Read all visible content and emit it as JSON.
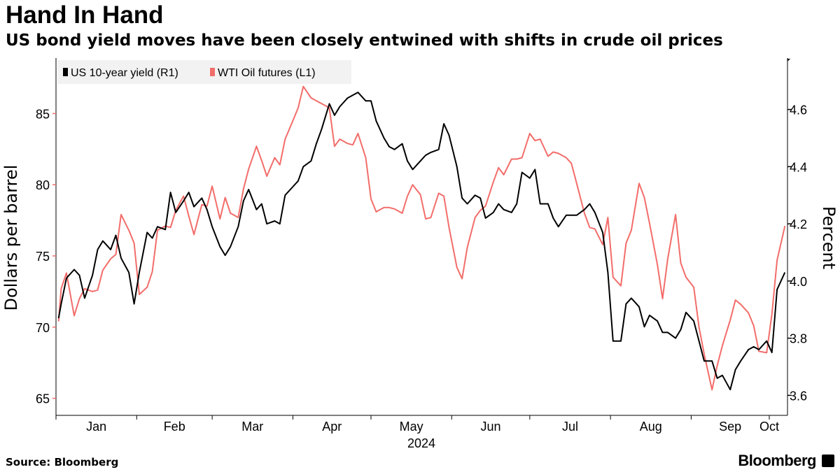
{
  "title": "Hand In Hand",
  "subtitle": "US bond yield moves have been closely entwined with shifts in crude oil prices",
  "source": "Source: Bloomberg",
  "brand": "Bloomberg",
  "brand_icon": "bloomberg-terminal-icon",
  "colors": {
    "yield": "#000000",
    "oil": "#f26d6a",
    "legend_bg": "#f2f2f2",
    "axis": "#000000",
    "left_ticks": "#f26d6a"
  },
  "chart_data": {
    "type": "line",
    "xlabel": "2024",
    "month_labels": [
      "Jan",
      "Feb",
      "Mar",
      "Apr",
      "May",
      "Jun",
      "Jul",
      "Aug",
      "Sep",
      "Oct"
    ],
    "left_axis": {
      "label": "Dollars per barrel",
      "ticks": [
        "65",
        "70",
        "75",
        "80",
        "85"
      ],
      "range": [
        63.8,
        88.9
      ]
    },
    "right_axis": {
      "label": "Percent",
      "ticks": [
        "3.6",
        "3.8",
        "4.0",
        "4.2",
        "4.4",
        "4.6"
      ],
      "range": [
        3.53,
        4.78
      ]
    },
    "x_range": [
      "2024-01-01",
      "2024-10-08"
    ],
    "grid": false,
    "legend_position": "top-left",
    "series": [
      {
        "name": "US 10-year yield (R1)",
        "axis": "right",
        "x": [
          "2024-01-02",
          "2024-01-03",
          "2024-01-05",
          "2024-01-08",
          "2024-01-10",
          "2024-01-12",
          "2024-01-15",
          "2024-01-17",
          "2024-01-19",
          "2024-01-22",
          "2024-01-24",
          "2024-01-26",
          "2024-01-29",
          "2024-01-31",
          "2024-02-02",
          "2024-02-05",
          "2024-02-07",
          "2024-02-09",
          "2024-02-12",
          "2024-02-14",
          "2024-02-16",
          "2024-02-19",
          "2024-02-21",
          "2024-02-23",
          "2024-02-26",
          "2024-02-28",
          "2024-03-01",
          "2024-03-04",
          "2024-03-06",
          "2024-03-08",
          "2024-03-11",
          "2024-03-13",
          "2024-03-15",
          "2024-03-18",
          "2024-03-20",
          "2024-03-22",
          "2024-03-25",
          "2024-03-27",
          "2024-03-29",
          "2024-04-01",
          "2024-04-03",
          "2024-04-05",
          "2024-04-08",
          "2024-04-10",
          "2024-04-12",
          "2024-04-15",
          "2024-04-17",
          "2024-04-19",
          "2024-04-22",
          "2024-04-24",
          "2024-04-26",
          "2024-04-29",
          "2024-05-01",
          "2024-05-03",
          "2024-05-06",
          "2024-05-08",
          "2024-05-10",
          "2024-05-13",
          "2024-05-15",
          "2024-05-17",
          "2024-05-20",
          "2024-05-22",
          "2024-05-24",
          "2024-05-27",
          "2024-05-29",
          "2024-05-31",
          "2024-06-03",
          "2024-06-05",
          "2024-06-07",
          "2024-06-10",
          "2024-06-12",
          "2024-06-14",
          "2024-06-17",
          "2024-06-19",
          "2024-06-21",
          "2024-06-24",
          "2024-06-26",
          "2024-06-28",
          "2024-07-01",
          "2024-07-03",
          "2024-07-05",
          "2024-07-08",
          "2024-07-10",
          "2024-07-12",
          "2024-07-15",
          "2024-07-17",
          "2024-07-19",
          "2024-07-22",
          "2024-07-24",
          "2024-07-26",
          "2024-07-29",
          "2024-07-31",
          "2024-08-02",
          "2024-08-05",
          "2024-08-07",
          "2024-08-09",
          "2024-08-12",
          "2024-08-14",
          "2024-08-16",
          "2024-08-19",
          "2024-08-21",
          "2024-08-23",
          "2024-08-26",
          "2024-08-28",
          "2024-08-30",
          "2024-09-02",
          "2024-09-04",
          "2024-09-06",
          "2024-09-09",
          "2024-09-11",
          "2024-09-13",
          "2024-09-16",
          "2024-09-18",
          "2024-09-20",
          "2024-09-23",
          "2024-09-25",
          "2024-09-27",
          "2024-09-30",
          "2024-10-02",
          "2024-10-04",
          "2024-10-07"
        ],
        "values": [
          3.87,
          3.92,
          4.01,
          4.04,
          4.02,
          3.94,
          4.02,
          4.11,
          4.14,
          4.11,
          4.16,
          4.08,
          4.03,
          3.92,
          4.03,
          4.17,
          4.15,
          4.19,
          4.18,
          4.31,
          4.24,
          4.28,
          4.31,
          4.26,
          4.29,
          4.25,
          4.19,
          4.12,
          4.09,
          4.12,
          4.19,
          4.28,
          4.32,
          4.25,
          4.27,
          4.2,
          4.21,
          4.2,
          4.3,
          4.33,
          4.35,
          4.4,
          4.42,
          4.48,
          4.53,
          4.62,
          4.58,
          4.61,
          4.64,
          4.65,
          4.66,
          4.63,
          4.63,
          4.56,
          4.5,
          4.47,
          4.46,
          4.48,
          4.42,
          4.39,
          4.42,
          4.44,
          4.45,
          4.46,
          4.55,
          4.51,
          4.4,
          4.29,
          4.27,
          4.3,
          4.29,
          4.22,
          4.24,
          4.27,
          4.25,
          4.24,
          4.27,
          4.38,
          4.36,
          4.39,
          4.27,
          4.27,
          4.22,
          4.19,
          4.23,
          4.23,
          4.23,
          4.25,
          4.27,
          4.24,
          4.17,
          4.03,
          3.79,
          3.79,
          3.92,
          3.94,
          3.91,
          3.84,
          3.88,
          3.86,
          3.82,
          3.82,
          3.8,
          3.83,
          3.89,
          3.86,
          3.79,
          3.72,
          3.72,
          3.66,
          3.67,
          3.62,
          3.69,
          3.72,
          3.76,
          3.77,
          3.76,
          3.79,
          3.75,
          3.97,
          4.03
        ]
      },
      {
        "name": "WTI Oil futures  (L1)",
        "axis": "left",
        "x": [
          "2024-01-02",
          "2024-01-03",
          "2024-01-05",
          "2024-01-08",
          "2024-01-10",
          "2024-01-12",
          "2024-01-15",
          "2024-01-17",
          "2024-01-19",
          "2024-01-22",
          "2024-01-24",
          "2024-01-26",
          "2024-01-29",
          "2024-01-31",
          "2024-02-02",
          "2024-02-05",
          "2024-02-07",
          "2024-02-09",
          "2024-02-12",
          "2024-02-14",
          "2024-02-16",
          "2024-02-19",
          "2024-02-21",
          "2024-02-23",
          "2024-02-26",
          "2024-02-28",
          "2024-03-01",
          "2024-03-04",
          "2024-03-06",
          "2024-03-08",
          "2024-03-11",
          "2024-03-13",
          "2024-03-15",
          "2024-03-18",
          "2024-03-20",
          "2024-03-22",
          "2024-03-25",
          "2024-03-27",
          "2024-03-29",
          "2024-04-01",
          "2024-04-03",
          "2024-04-05",
          "2024-04-08",
          "2024-04-10",
          "2024-04-12",
          "2024-04-15",
          "2024-04-17",
          "2024-04-19",
          "2024-04-22",
          "2024-04-24",
          "2024-04-26",
          "2024-04-29",
          "2024-05-01",
          "2024-05-03",
          "2024-05-06",
          "2024-05-08",
          "2024-05-10",
          "2024-05-13",
          "2024-05-15",
          "2024-05-17",
          "2024-05-20",
          "2024-05-22",
          "2024-05-24",
          "2024-05-27",
          "2024-05-29",
          "2024-05-31",
          "2024-06-03",
          "2024-06-05",
          "2024-06-07",
          "2024-06-10",
          "2024-06-12",
          "2024-06-14",
          "2024-06-17",
          "2024-06-19",
          "2024-06-21",
          "2024-06-24",
          "2024-06-26",
          "2024-06-28",
          "2024-07-01",
          "2024-07-03",
          "2024-07-05",
          "2024-07-08",
          "2024-07-10",
          "2024-07-12",
          "2024-07-15",
          "2024-07-17",
          "2024-07-19",
          "2024-07-22",
          "2024-07-24",
          "2024-07-26",
          "2024-07-29",
          "2024-07-31",
          "2024-08-02",
          "2024-08-05",
          "2024-08-07",
          "2024-08-09",
          "2024-08-12",
          "2024-08-14",
          "2024-08-16",
          "2024-08-19",
          "2024-08-21",
          "2024-08-23",
          "2024-08-26",
          "2024-08-28",
          "2024-08-30",
          "2024-09-02",
          "2024-09-04",
          "2024-09-06",
          "2024-09-09",
          "2024-09-11",
          "2024-09-13",
          "2024-09-16",
          "2024-09-18",
          "2024-09-20",
          "2024-09-23",
          "2024-09-25",
          "2024-09-27",
          "2024-09-30",
          "2024-10-02",
          "2024-10-04",
          "2024-10-07"
        ],
        "values": [
          70.4,
          72.7,
          73.8,
          70.8,
          72.0,
          72.7,
          72.5,
          72.6,
          74.0,
          74.8,
          75.1,
          77.9,
          76.8,
          75.9,
          72.3,
          72.8,
          73.9,
          76.8,
          77.1,
          77.0,
          78.2,
          79.2,
          77.8,
          76.5,
          78.6,
          78.5,
          79.9,
          77.6,
          79.1,
          78.0,
          77.7,
          79.7,
          81.1,
          82.7,
          81.7,
          80.6,
          81.9,
          81.4,
          83.2,
          84.5,
          85.4,
          86.9,
          86.1,
          85.9,
          85.7,
          85.4,
          82.7,
          83.2,
          82.9,
          82.8,
          83.6,
          81.9,
          79.0,
          78.1,
          78.4,
          78.4,
          78.3,
          78.0,
          79.2,
          80.0,
          79.3,
          77.6,
          77.7,
          79.4,
          79.2,
          77.0,
          74.2,
          73.4,
          75.6,
          77.7,
          78.2,
          78.5,
          80.2,
          81.2,
          80.7,
          81.8,
          81.8,
          81.9,
          83.6,
          83.1,
          83.2,
          82.0,
          82.3,
          82.2,
          81.9,
          81.5,
          80.1,
          78.0,
          77.0,
          76.9,
          75.8,
          77.7,
          73.5,
          72.9,
          75.9,
          76.8,
          80.1,
          79.1,
          77.3,
          74.4,
          72.0,
          74.8,
          77.9,
          74.5,
          73.5,
          72.8,
          70.0,
          68.1,
          65.6,
          67.3,
          68.7,
          70.5,
          71.9,
          71.6,
          71.0,
          70.1,
          68.3,
          68.2,
          70.9,
          74.7,
          77.1
        ]
      }
    ]
  }
}
